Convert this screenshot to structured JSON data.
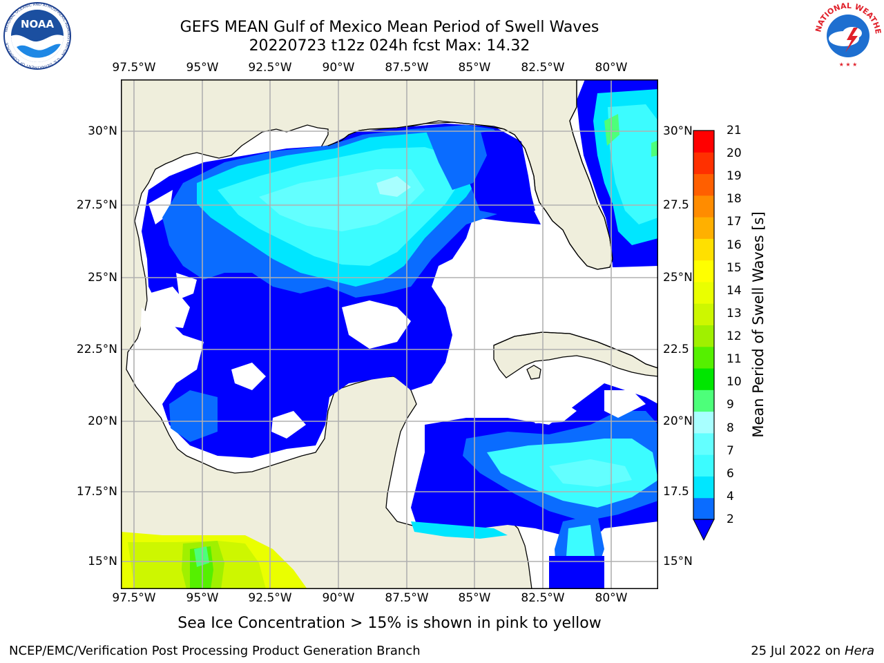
{
  "title": {
    "line1": "GEFS MEAN Gulf of Mexico Mean Period of Swell Waves",
    "line2": "20220723 t12z 024h fcst   Max: 14.32"
  },
  "logos": {
    "noaa_text": "NOAA",
    "noaa_ring": "NATIONAL OCEANIC AND ATMOSPHERIC ADMINISTRATION · U.S. DEPARTMENT OF COMMERCE",
    "nws_ring": "NATIONAL WEATHER SERVICE"
  },
  "map": {
    "lon_labels": [
      "97.5°W",
      "95°W",
      "92.5°W",
      "90°W",
      "87.5°W",
      "85°W",
      "82.5°W",
      "80°W"
    ],
    "lat_labels_left": [
      "30°N",
      "27.5°N",
      "25°N",
      "22.5°N",
      "20°N",
      "17.5°N",
      "15°N"
    ],
    "lat_labels_right": [
      "30°N",
      "27.5",
      "25°N",
      "22.5",
      "20°N",
      "17.5",
      "15°N"
    ],
    "lon_range": [
      -98,
      -78.3
    ],
    "lat_range": [
      14,
      31.7
    ],
    "land_color": "#efeedc",
    "ocean_blank_color": "#ffffff",
    "grid_color": "#b0b0b0"
  },
  "colorbar": {
    "label": "Mean Period of Swell Waves [s]",
    "ticks": [
      "2",
      "4",
      "6",
      "7",
      "8",
      "9",
      "10",
      "11",
      "12",
      "13",
      "14",
      "15",
      "16",
      "17",
      "18",
      "19",
      "20",
      "21"
    ],
    "colors": [
      "#0a6cff",
      "#00e6ff",
      "#3cfcff",
      "#63ffff",
      "#a8ffff",
      "#4dff7a",
      "#00e600",
      "#55f000",
      "#a0f000",
      "#cdf700",
      "#eaff00",
      "#ffff00",
      "#ffe000",
      "#ffb000",
      "#ff8c00",
      "#ff5f00",
      "#ff3000",
      "#ff0000"
    ],
    "extend_color": "#0000ff"
  },
  "bottom_note": "Sea Ice Concentration > 15% is shown in pink to yellow",
  "footer": {
    "left": "NCEP/EMC/Verification Post Processing Product Generation Branch",
    "right_prefix": "25 Jul 2022 on ",
    "right_host": "Hera"
  }
}
